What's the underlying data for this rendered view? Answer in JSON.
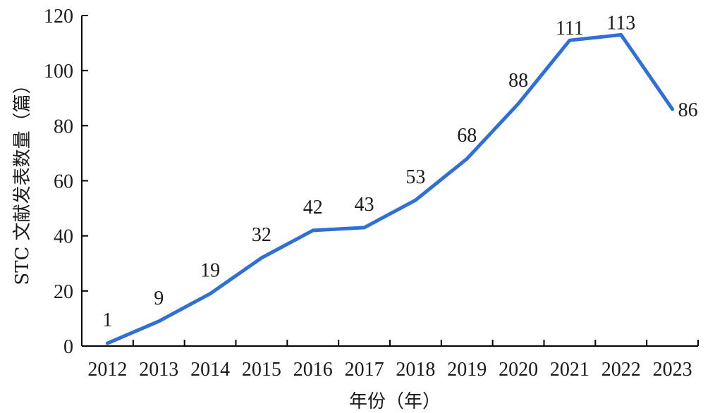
{
  "chart_data": {
    "type": "line",
    "title": "",
    "xlabel": "年份（年）",
    "ylabel": "STC 文献发表数量（篇）",
    "categories": [
      "2012",
      "2013",
      "2014",
      "2015",
      "2016",
      "2017",
      "2018",
      "2019",
      "2020",
      "2021",
      "2022",
      "2023"
    ],
    "values": [
      1,
      9,
      19,
      32,
      42,
      43,
      53,
      68,
      88,
      111,
      113,
      86
    ],
    "data_labels": [
      "1",
      "9",
      "19",
      "32",
      "42",
      "43",
      "53",
      "68",
      "88",
      "111",
      "113",
      "86"
    ],
    "y_ticks": [
      "0",
      "20",
      "40",
      "60",
      "80",
      "100",
      "120"
    ],
    "ylim": [
      0,
      120
    ],
    "grid": false,
    "legend": "none",
    "line_color": "#2e6fd8"
  }
}
